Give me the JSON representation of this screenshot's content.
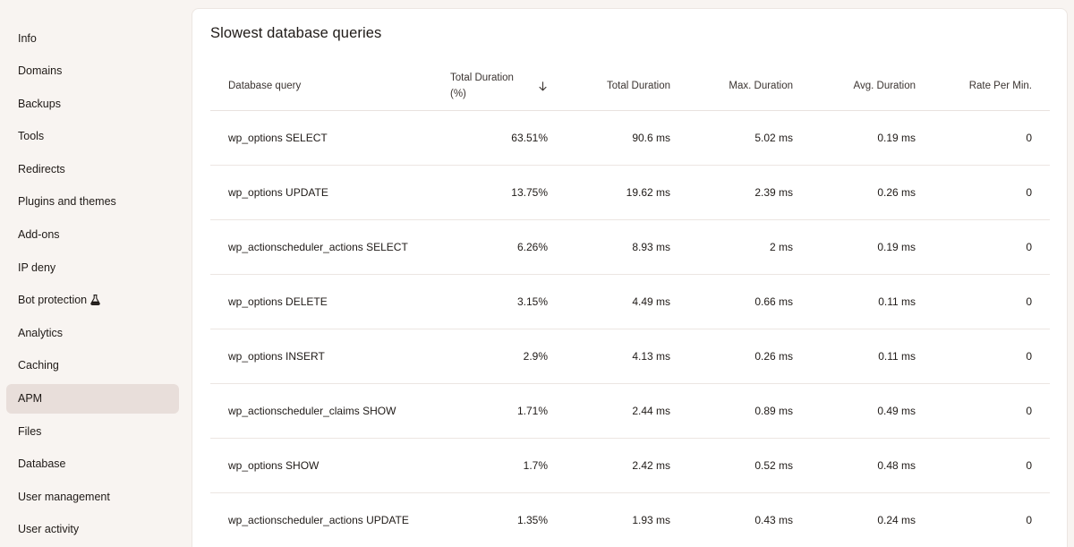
{
  "sidebar": {
    "items": [
      {
        "label": "Info",
        "active": false
      },
      {
        "label": "Domains",
        "active": false
      },
      {
        "label": "Backups",
        "active": false
      },
      {
        "label": "Tools",
        "active": false
      },
      {
        "label": "Redirects",
        "active": false
      },
      {
        "label": "Plugins and themes",
        "active": false
      },
      {
        "label": "Add-ons",
        "active": false
      },
      {
        "label": "IP deny",
        "active": false
      },
      {
        "label": "Bot protection",
        "active": false,
        "icon": "flask-icon"
      },
      {
        "label": "Analytics",
        "active": false
      },
      {
        "label": "Caching",
        "active": false
      },
      {
        "label": "APM",
        "active": true
      },
      {
        "label": "Files",
        "active": false
      },
      {
        "label": "Database",
        "active": false
      },
      {
        "label": "User management",
        "active": false
      },
      {
        "label": "User activity",
        "active": false
      }
    ]
  },
  "main": {
    "title": "Slowest database queries",
    "table": {
      "headers": {
        "query": "Database query",
        "total_pct_line1": "Total Duration",
        "total_pct_line2": "(%)",
        "total": "Total Duration",
        "max": "Max. Duration",
        "avg": "Avg. Duration",
        "rate": "Rate Per Min."
      },
      "sort": {
        "column": "Total Duration (%)",
        "direction": "desc",
        "icon": "arrow-down-icon"
      },
      "rows": [
        {
          "query": "wp_options SELECT",
          "total_pct": "63.51%",
          "total": "90.6 ms",
          "max": "5.02 ms",
          "avg": "0.19 ms",
          "rate": "0"
        },
        {
          "query": "wp_options UPDATE",
          "total_pct": "13.75%",
          "total": "19.62 ms",
          "max": "2.39 ms",
          "avg": "0.26 ms",
          "rate": "0"
        },
        {
          "query": "wp_actionscheduler_actions SELECT",
          "total_pct": "6.26%",
          "total": "8.93 ms",
          "max": "2 ms",
          "avg": "0.19 ms",
          "rate": "0"
        },
        {
          "query": "wp_options DELETE",
          "total_pct": "3.15%",
          "total": "4.49 ms",
          "max": "0.66 ms",
          "avg": "0.11 ms",
          "rate": "0"
        },
        {
          "query": "wp_options INSERT",
          "total_pct": "2.9%",
          "total": "4.13 ms",
          "max": "0.26 ms",
          "avg": "0.11 ms",
          "rate": "0"
        },
        {
          "query": "wp_actionscheduler_claims SHOW",
          "total_pct": "1.71%",
          "total": "2.44 ms",
          "max": "0.89 ms",
          "avg": "0.49 ms",
          "rate": "0"
        },
        {
          "query": "wp_options SHOW",
          "total_pct": "1.7%",
          "total": "2.42 ms",
          "max": "0.52 ms",
          "avg": "0.48 ms",
          "rate": "0"
        },
        {
          "query": "wp_actionscheduler_actions UPDATE",
          "total_pct": "1.35%",
          "total": "1.93 ms",
          "max": "0.43 ms",
          "avg": "0.24 ms",
          "rate": "0"
        }
      ]
    }
  },
  "colors": {
    "background": "#f8f4f1",
    "active_nav": "#e8deda",
    "card": "#ffffff",
    "divider": "#ece6e2",
    "text": "#1f1a17"
  }
}
